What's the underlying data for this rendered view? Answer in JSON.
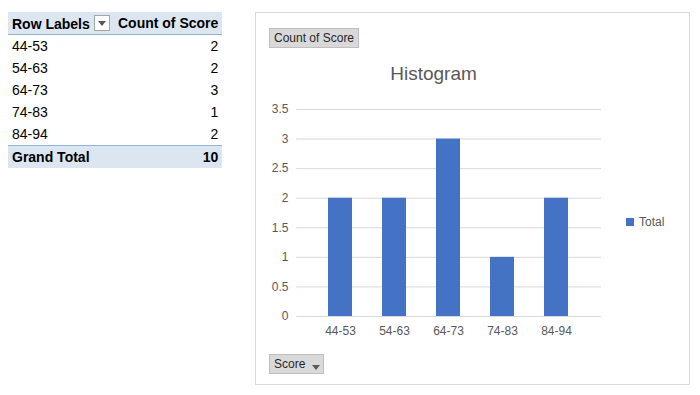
{
  "table": {
    "header": [
      "Row Labels",
      "Count of Score"
    ],
    "rows": [
      [
        "44-53",
        2
      ],
      [
        "54-63",
        2
      ],
      [
        "64-73",
        3
      ],
      [
        "74-83",
        1
      ],
      [
        "84-94",
        2
      ]
    ],
    "total": [
      "Grand Total",
      10
    ]
  },
  "chart_data": {
    "type": "bar",
    "title": "Histogram",
    "annotations": [
      "Count of Score",
      "Score"
    ],
    "categories": [
      "44-53",
      "54-63",
      "64-73",
      "74-83",
      "84-94"
    ],
    "series": [
      {
        "name": "Total",
        "color": "#4472c4",
        "values": [
          2,
          2,
          3,
          1,
          2
        ]
      }
    ],
    "ylim": [
      0,
      3.5
    ],
    "yticks": [
      0,
      0.5,
      1,
      1.5,
      2,
      2.5,
      3,
      3.5
    ],
    "grid": true,
    "legend": "right"
  }
}
